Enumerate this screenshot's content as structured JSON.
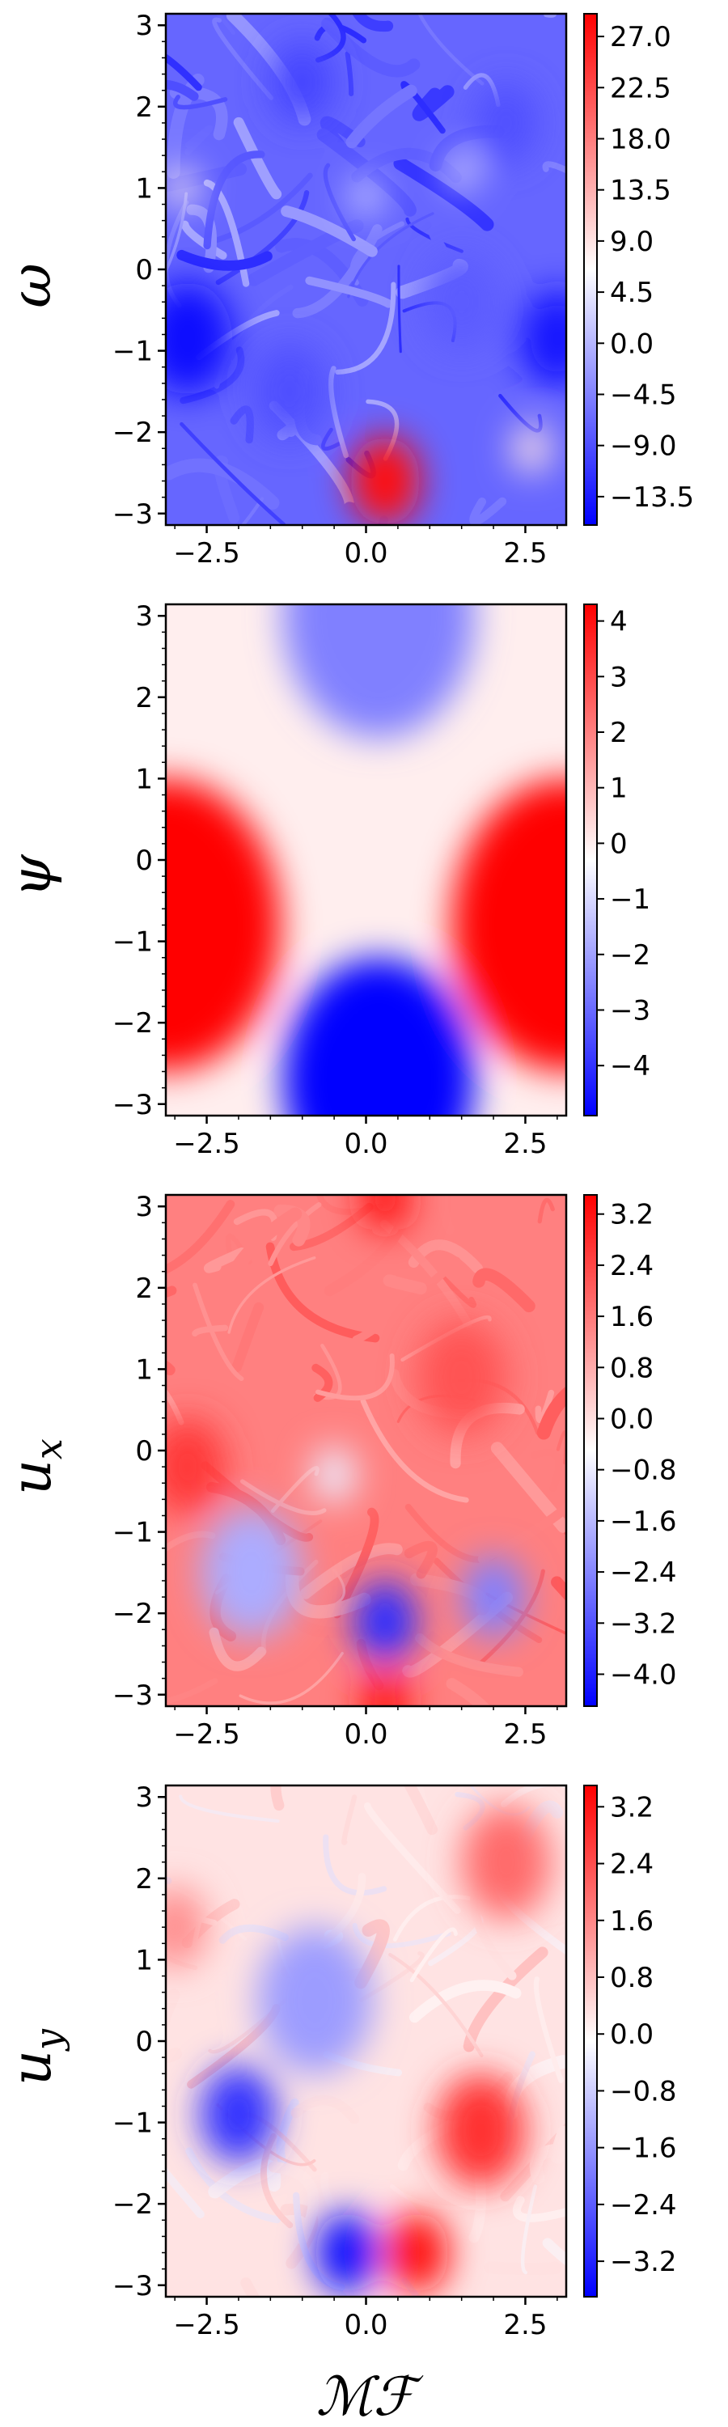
{
  "figure": {
    "xlabel": "ℳℱ"
  },
  "chart_data": [
    {
      "type": "heatmap",
      "field": "omega",
      "ylabel": "ω",
      "xlim": [
        -3.14159,
        3.14159
      ],
      "ylim": [
        -3.14159,
        3.14159
      ],
      "x_ticks": [
        -2.5,
        0.0,
        2.5
      ],
      "x_tick_labels": [
        "−2.5",
        "0.0",
        "2.5"
      ],
      "y_ticks": [
        -3,
        -2,
        -1,
        0,
        1,
        2,
        3
      ],
      "y_tick_labels": [
        "−3",
        "−2",
        "−1",
        "0",
        "1",
        "2",
        "3"
      ],
      "colorbar": {
        "range": [
          -16,
          29
        ],
        "ticks": [
          -13.5,
          -9.0,
          -4.5,
          0.0,
          4.5,
          9.0,
          13.5,
          18.0,
          22.5,
          27.0
        ],
        "tick_labels": [
          "−13.5",
          "−9.0",
          "−4.5",
          "0.0",
          "4.5",
          "9.0",
          "13.5",
          "18.0",
          "22.5",
          "27.0"
        ],
        "colormap": "bwr",
        "colors": [
          "#0000ff",
          "#ffffff",
          "#ff0000"
        ]
      },
      "features": [
        {
          "x": 0.3,
          "y": -2.6,
          "value": 28,
          "r": 0.55
        },
        {
          "x": -2.8,
          "y": -0.85,
          "value": -15,
          "r": 0.7
        },
        {
          "x": 3.0,
          "y": -0.85,
          "value": -14,
          "r": 0.6
        },
        {
          "x": 2.6,
          "y": -2.2,
          "value": 9,
          "r": 0.3
        },
        {
          "x": -2.9,
          "y": 1.0,
          "value": 8,
          "r": 0.25
        },
        {
          "x": 0.0,
          "y": 0.9,
          "value": 6,
          "r": 0.2
        },
        {
          "x": 1.5,
          "y": 1.2,
          "value": 7,
          "r": 0.2
        },
        {
          "x": -1.0,
          "y": 2.3,
          "value": -10,
          "r": 0.5
        },
        {
          "x": -1.2,
          "y": -1.5,
          "value": -9,
          "r": 0.6
        },
        {
          "x": 1.5,
          "y": -0.4,
          "value": -8,
          "r": 0.6
        },
        {
          "x": 2.2,
          "y": 1.8,
          "value": -9,
          "r": 0.5
        }
      ],
      "background": -7,
      "texture": 5
    },
    {
      "type": "heatmap",
      "field": "psi",
      "ylabel": "ψ",
      "xlim": [
        -3.14159,
        3.14159
      ],
      "ylim": [
        -3.14159,
        3.14159
      ],
      "x_ticks": [
        -2.5,
        0.0,
        2.5
      ],
      "x_tick_labels": [
        "−2.5",
        "0.0",
        "2.5"
      ],
      "y_ticks": [
        -3,
        -2,
        -1,
        0,
        1,
        2,
        3
      ],
      "y_tick_labels": [
        "−3",
        "−2",
        "−1",
        "0",
        "1",
        "2",
        "3"
      ],
      "colorbar": {
        "range": [
          -4.9,
          4.3
        ],
        "ticks": [
          -4,
          -3,
          -2,
          -1,
          0,
          1,
          2,
          3,
          4
        ],
        "tick_labels": [
          "−4",
          "−3",
          "−2",
          "−1",
          "0",
          "1",
          "2",
          "3",
          "4"
        ],
        "colormap": "bwr",
        "colors": [
          "#0000ff",
          "#ffffff",
          "#ff0000"
        ]
      },
      "features": [
        {
          "x": 0.2,
          "y": -2.7,
          "value": -5.5,
          "r": 1.5
        },
        {
          "x": 0.2,
          "y": 3.0,
          "value": -2.6,
          "r": 1.5
        },
        {
          "x": -3.14,
          "y": -0.8,
          "value": 4.8,
          "r": 1.8
        },
        {
          "x": 3.14,
          "y": -0.8,
          "value": 4.8,
          "r": 1.8
        }
      ],
      "background": 0,
      "texture": 0
    },
    {
      "type": "heatmap",
      "field": "u_x",
      "ylabel": "u_x",
      "xlim": [
        -3.14159,
        3.14159
      ],
      "ylim": [
        -3.14159,
        3.14159
      ],
      "x_ticks": [
        -2.5,
        0.0,
        2.5
      ],
      "x_tick_labels": [
        "−2.5",
        "0.0",
        "2.5"
      ],
      "y_ticks": [
        -3,
        -2,
        -1,
        0,
        1,
        2,
        3
      ],
      "y_tick_labels": [
        "−3",
        "−2",
        "−1",
        "0",
        "1",
        "2",
        "3"
      ],
      "colorbar": {
        "range": [
          -4.5,
          3.5
        ],
        "ticks": [
          -4.0,
          -3.2,
          -2.4,
          -1.6,
          -0.8,
          0.0,
          0.8,
          1.6,
          2.4,
          3.2
        ],
        "tick_labels": [
          "−4.0",
          "−3.2",
          "−2.4",
          "−1.6",
          "−0.8",
          "0.0",
          "0.8",
          "1.6",
          "2.4",
          "3.2"
        ],
        "colormap": "bwr",
        "colors": [
          "#0000ff",
          "#ffffff",
          "#ff0000"
        ]
      },
      "features": [
        {
          "x": 0.3,
          "y": -2.1,
          "value": -3.8,
          "r": 0.5
        },
        {
          "x": 2.0,
          "y": -1.8,
          "value": -2.5,
          "r": 0.5
        },
        {
          "x": -1.8,
          "y": -1.5,
          "value": -1.8,
          "r": 0.8
        },
        {
          "x": 0.3,
          "y": 3.1,
          "value": 3.2,
          "r": 0.4
        },
        {
          "x": 0.3,
          "y": -3.1,
          "value": 3.2,
          "r": 0.4
        },
        {
          "x": -2.8,
          "y": -0.2,
          "value": 2.6,
          "r": 0.6
        },
        {
          "x": 1.5,
          "y": 0.9,
          "value": 2.2,
          "r": 0.7
        },
        {
          "x": -0.5,
          "y": -0.3,
          "value": -0.8,
          "r": 0.35
        }
      ],
      "background": 1.5,
      "texture": 0.5
    },
    {
      "type": "heatmap",
      "field": "u_y",
      "ylabel": "u_y",
      "xlim": [
        -3.14159,
        3.14159
      ],
      "ylim": [
        -3.14159,
        3.14159
      ],
      "x_ticks": [
        -2.5,
        0.0,
        2.5
      ],
      "x_tick_labels": [
        "−2.5",
        "0.0",
        "2.5"
      ],
      "y_ticks": [
        -3,
        -2,
        -1,
        0,
        1,
        2,
        3
      ],
      "y_tick_labels": [
        "−3",
        "−2",
        "−1",
        "0",
        "1",
        "2",
        "3"
      ],
      "colorbar": {
        "range": [
          -3.7,
          3.5
        ],
        "ticks": [
          -3.2,
          -2.4,
          -1.6,
          -0.8,
          0.0,
          0.8,
          1.6,
          2.4,
          3.2
        ],
        "tick_labels": [
          "−3.2",
          "−2.4",
          "−1.6",
          "−0.8",
          "0.0",
          "0.8",
          "1.6",
          "2.4",
          "3.2"
        ],
        "colormap": "bwr",
        "colors": [
          "#0000ff",
          "#ffffff",
          "#ff0000"
        ]
      },
      "features": [
        {
          "x": -0.3,
          "y": -2.6,
          "value": -3.5,
          "r": 0.5
        },
        {
          "x": -2.0,
          "y": -0.9,
          "value": -3.0,
          "r": 0.6
        },
        {
          "x": 0.8,
          "y": -2.6,
          "value": 3.3,
          "r": 0.5
        },
        {
          "x": 1.8,
          "y": -1.1,
          "value": 2.8,
          "r": 0.7
        },
        {
          "x": 2.2,
          "y": 2.2,
          "value": 2.0,
          "r": 0.7
        },
        {
          "x": -3.0,
          "y": 1.4,
          "value": 1.5,
          "r": 0.5
        },
        {
          "x": -0.8,
          "y": 0.5,
          "value": -1.5,
          "r": 0.9
        }
      ],
      "background": 0.3,
      "texture": 0.4
    }
  ]
}
